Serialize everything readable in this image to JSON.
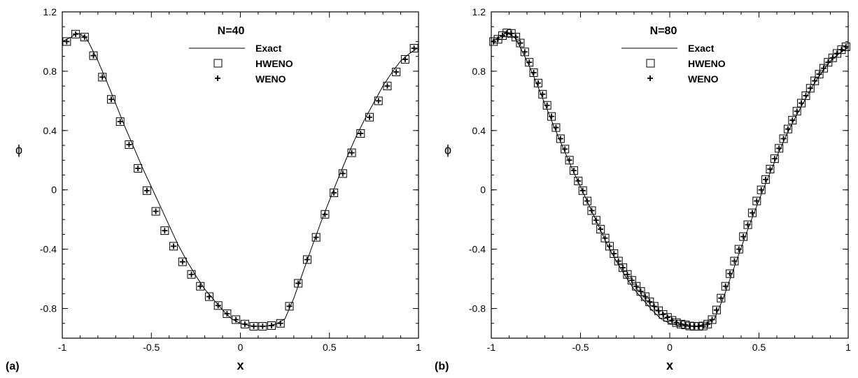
{
  "chart_data": [
    {
      "type": "line",
      "panel_label": "(a)",
      "legend_title": "N=40",
      "xlabel": "x",
      "ylabel": "ϕ",
      "xlim": [
        -1,
        1
      ],
      "ylim": [
        -1.0,
        1.2
      ],
      "x_ticks": [
        "-1",
        "-0.5",
        "0",
        "0.5",
        "1"
      ],
      "y_ticks": [
        "-0.8",
        "-0.4",
        "0",
        "0.4",
        "0.8",
        "1.2"
      ],
      "legend_placement": "top-center",
      "grid": false,
      "series": [
        {
          "name": "Exact",
          "marker": "line",
          "x": [
            -1.0,
            -0.95,
            -0.92,
            -0.9,
            -0.87,
            -0.85,
            -0.8,
            -0.75,
            -0.7,
            -0.65,
            -0.6,
            -0.55,
            -0.5,
            -0.45,
            -0.4,
            -0.35,
            -0.3,
            -0.25,
            -0.2,
            -0.15,
            -0.1,
            -0.05,
            0.0,
            0.05,
            0.1,
            0.15,
            0.2,
            0.25,
            0.3,
            0.35,
            0.4,
            0.45,
            0.5,
            0.55,
            0.6,
            0.65,
            0.7,
            0.75,
            0.8,
            0.85,
            0.9,
            0.95,
            1.0
          ],
          "y": [
            1.0,
            1.03,
            1.056,
            1.05,
            1.03,
            0.99,
            0.87,
            0.73,
            0.58,
            0.43,
            0.29,
            0.15,
            0.02,
            -0.11,
            -0.24,
            -0.37,
            -0.48,
            -0.58,
            -0.67,
            -0.74,
            -0.81,
            -0.87,
            -0.9,
            -0.915,
            -0.92,
            -0.918,
            -0.905,
            -0.87,
            -0.73,
            -0.56,
            -0.39,
            -0.225,
            -0.07,
            0.08,
            0.225,
            0.36,
            0.48,
            0.59,
            0.7,
            0.79,
            0.87,
            0.92,
            0.96
          ]
        },
        {
          "name": "HWENO",
          "marker": "square",
          "x": [
            -0.975,
            -0.925,
            -0.875,
            -0.825,
            -0.775,
            -0.725,
            -0.675,
            -0.625,
            -0.575,
            -0.525,
            -0.475,
            -0.425,
            -0.375,
            -0.325,
            -0.275,
            -0.225,
            -0.175,
            -0.125,
            -0.075,
            -0.025,
            0.025,
            0.075,
            0.125,
            0.175,
            0.225,
            0.275,
            0.325,
            0.375,
            0.425,
            0.475,
            0.525,
            0.575,
            0.625,
            0.675,
            0.725,
            0.775,
            0.825,
            0.875,
            0.925,
            0.975
          ],
          "y": [
            1.0,
            1.05,
            1.03,
            0.905,
            0.76,
            0.61,
            0.46,
            0.305,
            0.145,
            -0.005,
            -0.145,
            -0.275,
            -0.38,
            -0.485,
            -0.57,
            -0.65,
            -0.72,
            -0.78,
            -0.835,
            -0.875,
            -0.905,
            -0.92,
            -0.92,
            -0.915,
            -0.9,
            -0.785,
            -0.63,
            -0.47,
            -0.32,
            -0.165,
            -0.02,
            0.11,
            0.25,
            0.38,
            0.49,
            0.6,
            0.7,
            0.795,
            0.88,
            0.955
          ]
        },
        {
          "name": "WENO",
          "marker": "plus",
          "x": [
            -0.975,
            -0.925,
            -0.875,
            -0.825,
            -0.775,
            -0.725,
            -0.675,
            -0.625,
            -0.575,
            -0.525,
            -0.475,
            -0.425,
            -0.375,
            -0.325,
            -0.275,
            -0.225,
            -0.175,
            -0.125,
            -0.075,
            -0.025,
            0.025,
            0.075,
            0.125,
            0.175,
            0.225,
            0.275,
            0.325,
            0.375,
            0.425,
            0.475,
            0.525,
            0.575,
            0.625,
            0.675,
            0.725,
            0.775,
            0.825,
            0.875,
            0.925,
            0.975
          ],
          "y": [
            1.0,
            1.05,
            1.03,
            0.905,
            0.76,
            0.61,
            0.46,
            0.305,
            0.145,
            -0.005,
            -0.145,
            -0.275,
            -0.38,
            -0.485,
            -0.57,
            -0.65,
            -0.72,
            -0.78,
            -0.835,
            -0.875,
            -0.905,
            -0.92,
            -0.92,
            -0.915,
            -0.9,
            -0.785,
            -0.63,
            -0.47,
            -0.32,
            -0.165,
            -0.02,
            0.11,
            0.25,
            0.38,
            0.49,
            0.6,
            0.7,
            0.795,
            0.88,
            0.955
          ]
        }
      ]
    },
    {
      "type": "line",
      "panel_label": "(b)",
      "legend_title": "N=80",
      "xlabel": "x",
      "ylabel": "ϕ",
      "xlim": [
        -1,
        1
      ],
      "ylim": [
        -1.0,
        1.2
      ],
      "x_ticks": [
        "-1",
        "-0.5",
        "0",
        "0.5",
        "1"
      ],
      "y_ticks": [
        "-0.8",
        "-0.4",
        "0",
        "0.4",
        "0.8",
        "1.2"
      ],
      "legend_placement": "top-center",
      "grid": false,
      "series": [
        {
          "name": "Exact",
          "marker": "line",
          "x": [
            -1.0,
            -0.95,
            -0.92,
            -0.9,
            -0.87,
            -0.85,
            -0.8,
            -0.75,
            -0.7,
            -0.65,
            -0.6,
            -0.55,
            -0.5,
            -0.45,
            -0.4,
            -0.35,
            -0.3,
            -0.25,
            -0.2,
            -0.15,
            -0.1,
            -0.05,
            0.0,
            0.05,
            0.1,
            0.15,
            0.2,
            0.25,
            0.3,
            0.35,
            0.4,
            0.45,
            0.5,
            0.55,
            0.6,
            0.65,
            0.7,
            0.75,
            0.8,
            0.85,
            0.9,
            0.95,
            1.0
          ],
          "y": [
            1.0,
            1.03,
            1.056,
            1.05,
            1.03,
            0.99,
            0.87,
            0.73,
            0.58,
            0.43,
            0.29,
            0.15,
            0.02,
            -0.11,
            -0.24,
            -0.37,
            -0.48,
            -0.58,
            -0.67,
            -0.74,
            -0.81,
            -0.87,
            -0.9,
            -0.915,
            -0.92,
            -0.918,
            -0.905,
            -0.87,
            -0.73,
            -0.56,
            -0.39,
            -0.225,
            -0.07,
            0.08,
            0.225,
            0.36,
            0.48,
            0.59,
            0.7,
            0.79,
            0.87,
            0.92,
            0.96
          ]
        },
        {
          "name": "HWENO",
          "marker": "square",
          "x": [
            -0.9875,
            -0.9625,
            -0.9375,
            -0.9125,
            -0.8875,
            -0.8625,
            -0.8375,
            -0.8125,
            -0.7875,
            -0.7625,
            -0.7375,
            -0.7125,
            -0.6875,
            -0.6625,
            -0.6375,
            -0.6125,
            -0.5875,
            -0.5625,
            -0.5375,
            -0.5125,
            -0.4875,
            -0.4625,
            -0.4375,
            -0.4125,
            -0.3875,
            -0.3625,
            -0.3375,
            -0.3125,
            -0.2875,
            -0.2625,
            -0.2375,
            -0.2125,
            -0.1875,
            -0.1625,
            -0.1375,
            -0.1125,
            -0.0875,
            -0.0625,
            -0.0375,
            -0.0125,
            0.0125,
            0.0375,
            0.0625,
            0.0875,
            0.1125,
            0.1375,
            0.1625,
            0.1875,
            0.2125,
            0.2375,
            0.2625,
            0.2875,
            0.3125,
            0.3375,
            0.3625,
            0.3875,
            0.4125,
            0.4375,
            0.4625,
            0.4875,
            0.5125,
            0.5375,
            0.5625,
            0.5875,
            0.6125,
            0.6375,
            0.6625,
            0.6875,
            0.7125,
            0.7375,
            0.7625,
            0.7875,
            0.8125,
            0.8375,
            0.8625,
            0.8875,
            0.9125,
            0.9375,
            0.9625,
            0.9875
          ],
          "y": [
            1.0,
            1.015,
            1.04,
            1.058,
            1.055,
            1.03,
            0.99,
            0.93,
            0.86,
            0.79,
            0.72,
            0.645,
            0.57,
            0.495,
            0.42,
            0.345,
            0.275,
            0.2,
            0.13,
            0.06,
            -0.005,
            -0.075,
            -0.14,
            -0.205,
            -0.265,
            -0.325,
            -0.38,
            -0.43,
            -0.48,
            -0.525,
            -0.57,
            -0.61,
            -0.65,
            -0.685,
            -0.72,
            -0.755,
            -0.785,
            -0.815,
            -0.84,
            -0.86,
            -0.88,
            -0.895,
            -0.905,
            -0.91,
            -0.918,
            -0.92,
            -0.92,
            -0.918,
            -0.905,
            -0.875,
            -0.81,
            -0.73,
            -0.65,
            -0.565,
            -0.48,
            -0.4,
            -0.315,
            -0.235,
            -0.155,
            -0.075,
            0.0,
            0.07,
            0.14,
            0.21,
            0.28,
            0.345,
            0.41,
            0.47,
            0.53,
            0.585,
            0.635,
            0.685,
            0.735,
            0.78,
            0.82,
            0.86,
            0.89,
            0.92,
            0.945,
            0.965
          ]
        },
        {
          "name": "WENO",
          "marker": "plus",
          "x": [
            -0.9875,
            -0.9625,
            -0.9375,
            -0.9125,
            -0.8875,
            -0.8625,
            -0.8375,
            -0.8125,
            -0.7875,
            -0.7625,
            -0.7375,
            -0.7125,
            -0.6875,
            -0.6625,
            -0.6375,
            -0.6125,
            -0.5875,
            -0.5625,
            -0.5375,
            -0.5125,
            -0.4875,
            -0.4625,
            -0.4375,
            -0.4125,
            -0.3875,
            -0.3625,
            -0.3375,
            -0.3125,
            -0.2875,
            -0.2625,
            -0.2375,
            -0.2125,
            -0.1875,
            -0.1625,
            -0.1375,
            -0.1125,
            -0.0875,
            -0.0625,
            -0.0375,
            -0.0125,
            0.0125,
            0.0375,
            0.0625,
            0.0875,
            0.1125,
            0.1375,
            0.1625,
            0.1875,
            0.2125,
            0.2375,
            0.2625,
            0.2875,
            0.3125,
            0.3375,
            0.3625,
            0.3875,
            0.4125,
            0.4375,
            0.4625,
            0.4875,
            0.5125,
            0.5375,
            0.5625,
            0.5875,
            0.6125,
            0.6375,
            0.6625,
            0.6875,
            0.7125,
            0.7375,
            0.7625,
            0.7875,
            0.8125,
            0.8375,
            0.8625,
            0.8875,
            0.9125,
            0.9375,
            0.9625,
            0.9875
          ],
          "y": [
            1.0,
            1.015,
            1.04,
            1.058,
            1.055,
            1.03,
            0.99,
            0.93,
            0.86,
            0.79,
            0.72,
            0.645,
            0.57,
            0.495,
            0.42,
            0.345,
            0.275,
            0.2,
            0.13,
            0.06,
            -0.005,
            -0.075,
            -0.14,
            -0.205,
            -0.265,
            -0.325,
            -0.38,
            -0.43,
            -0.48,
            -0.525,
            -0.57,
            -0.61,
            -0.65,
            -0.685,
            -0.72,
            -0.755,
            -0.785,
            -0.815,
            -0.84,
            -0.86,
            -0.88,
            -0.895,
            -0.905,
            -0.91,
            -0.918,
            -0.92,
            -0.92,
            -0.918,
            -0.905,
            -0.875,
            -0.81,
            -0.73,
            -0.65,
            -0.565,
            -0.48,
            -0.4,
            -0.315,
            -0.235,
            -0.155,
            -0.075,
            0.0,
            0.07,
            0.14,
            0.21,
            0.28,
            0.345,
            0.41,
            0.47,
            0.53,
            0.585,
            0.635,
            0.685,
            0.735,
            0.78,
            0.82,
            0.86,
            0.89,
            0.92,
            0.945,
            0.965
          ]
        }
      ]
    }
  ]
}
